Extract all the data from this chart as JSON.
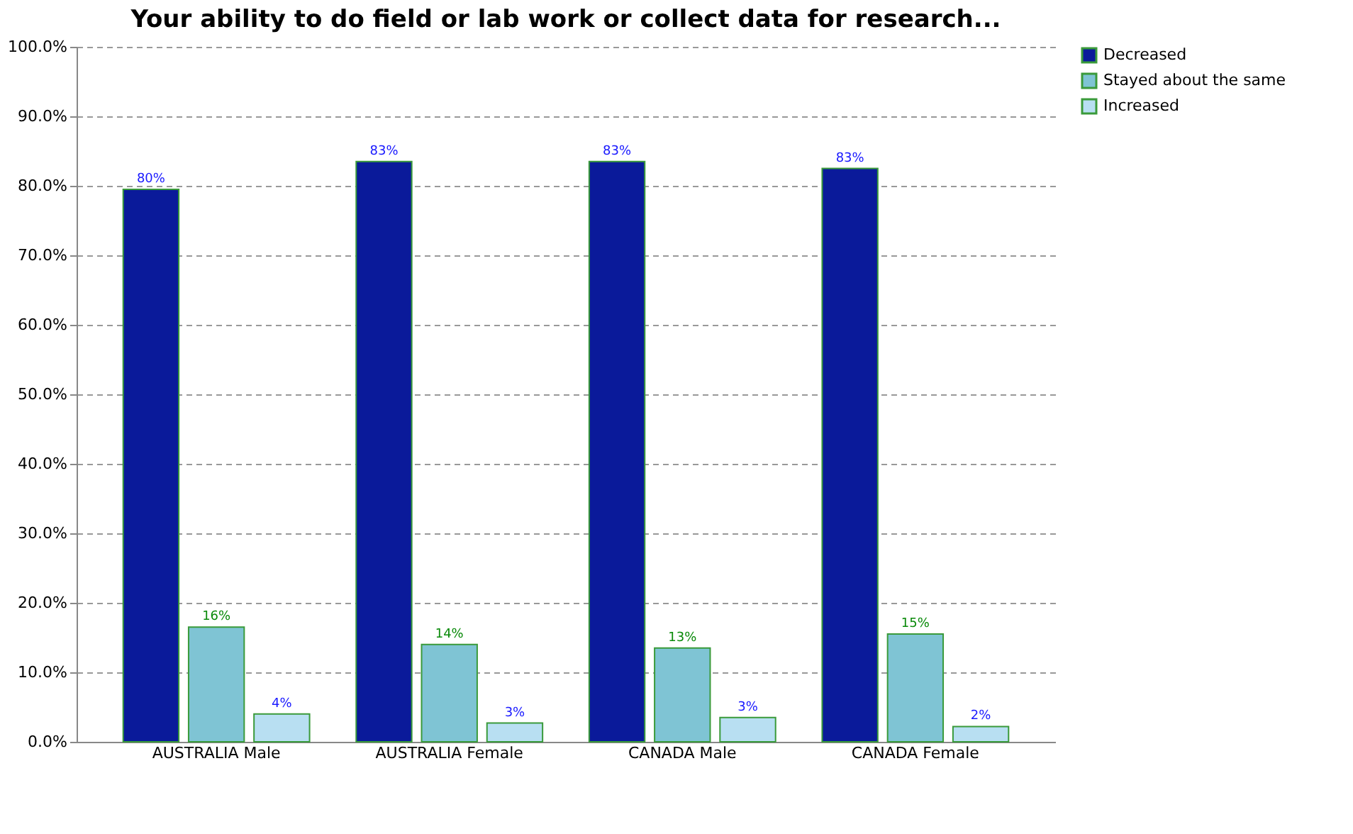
{
  "chart_data": {
    "type": "bar",
    "title": "Your ability to do field or lab work or collect data for research...",
    "categories": [
      "AUSTRALIA  Male",
      "AUSTRALIA  Female",
      "CANADA  Male",
      "CANADA  Female"
    ],
    "series": [
      {
        "name": "Decreased",
        "color": "#0a1a9a",
        "values": [
          79.5,
          83.5,
          83.5,
          82.5
        ],
        "value_labels": [
          "80%",
          "83%",
          "83%",
          "83%"
        ]
      },
      {
        "name": "Stayed about the same",
        "color": "#7fc4d4",
        "values": [
          16.5,
          14,
          13.5,
          15.5
        ],
        "value_labels": [
          "16%",
          "14%",
          "13%",
          "15%"
        ]
      },
      {
        "name": "Increased",
        "color": "#b8dff2",
        "values": [
          4,
          2.7,
          3.5,
          2.2
        ],
        "value_labels": [
          "4%",
          "3%",
          "3%",
          "2%"
        ]
      }
    ],
    "ylim": [
      0,
      100
    ],
    "yticks": [
      {
        "value": 0,
        "label": "0.0%"
      },
      {
        "value": 10,
        "label": "10.0%"
      },
      {
        "value": 20,
        "label": "20.0%"
      },
      {
        "value": 30,
        "label": "30.0%"
      },
      {
        "value": 40,
        "label": "40.0%"
      },
      {
        "value": 50,
        "label": "50.0%"
      },
      {
        "value": 60,
        "label": "60.0%"
      },
      {
        "value": 70,
        "label": "70.0%"
      },
      {
        "value": 80,
        "label": "80.0%"
      },
      {
        "value": 90,
        "label": "90.0%"
      },
      {
        "value": 100,
        "label": "100.0%"
      }
    ],
    "grid": "y",
    "legend": "right"
  }
}
